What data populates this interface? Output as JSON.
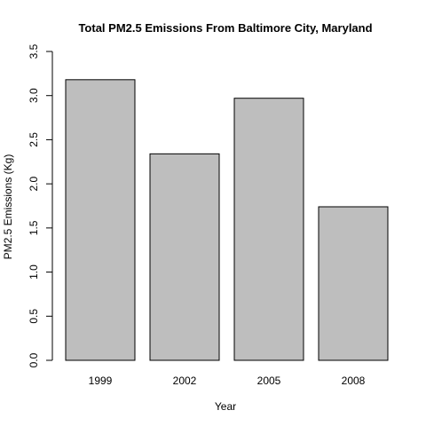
{
  "chart_data": {
    "type": "bar",
    "title": "Total PM2.5 Emissions From Baltimore City, Maryland",
    "xlabel": "Year",
    "ylabel": "PM2.5 Emissions (Kg)",
    "categories": [
      "1999",
      "2002",
      "2005",
      "2008"
    ],
    "values": [
      3.18,
      2.34,
      2.97,
      1.74
    ],
    "ylim": [
      0,
      3.5
    ],
    "yticks": [
      "0.0",
      "0.5",
      "1.0",
      "1.5",
      "2.0",
      "2.5",
      "3.0",
      "3.5"
    ],
    "grid": false,
    "bar_color": "#bebebe"
  }
}
